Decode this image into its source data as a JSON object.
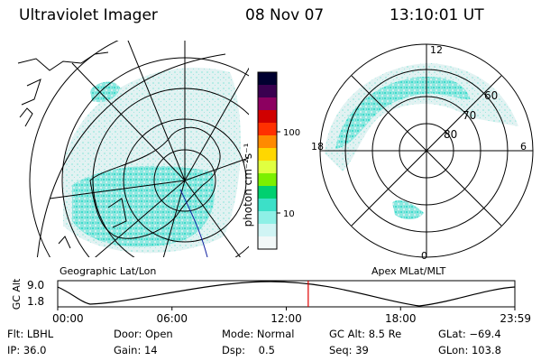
{
  "header": {
    "instrument": "Ultraviolet Imager",
    "date": "08 Nov 07",
    "time": "13:10:01 UT"
  },
  "geo_panel": {
    "label": "Geographic Lat/Lon"
  },
  "apex_panel": {
    "label": "Apex MLat/MLT",
    "mlt_labels": {
      "top": "12",
      "left": "18",
      "right": "6",
      "bottom": "0"
    },
    "lat_labels": [
      "60",
      "70",
      "80"
    ]
  },
  "colorbar": {
    "unit_label": "photon cm⁻²s⁻¹",
    "ticks": [
      "100",
      "10"
    ],
    "colors": [
      "#000030",
      "#3a0050",
      "#8c0060",
      "#d00000",
      "#ff3000",
      "#ff8a00",
      "#ffd700",
      "#e0ff40",
      "#7cf000",
      "#00d070",
      "#3ce0c8",
      "#8ef0e6",
      "#d0f4f4",
      "#f2f8f8"
    ]
  },
  "orbit": {
    "y_axis_title": "GC Alt",
    "y_ticks": [
      "9.0",
      "1.8"
    ],
    "x_ticks": [
      "00:00",
      "06:00",
      "12:00",
      "18:00",
      "23:59"
    ],
    "current_time_fraction": 0.548
  },
  "info": {
    "row1": [
      "Flt: LBHL",
      "Door: Open",
      "Mode: Normal",
      "GC Alt: 8.5 Re",
      "GLat: −69.4"
    ],
    "row2": [
      "IP: 36.0",
      "Gain: 14",
      "Dsp:    0.5",
      "Seq: 39",
      "GLon: 103.8"
    ]
  },
  "colors": {
    "aurora_dim": "#8ee8e0",
    "aurora_bright": "#40dccc",
    "aurora_faint": "#d4eeee",
    "marker": "#e00000"
  }
}
